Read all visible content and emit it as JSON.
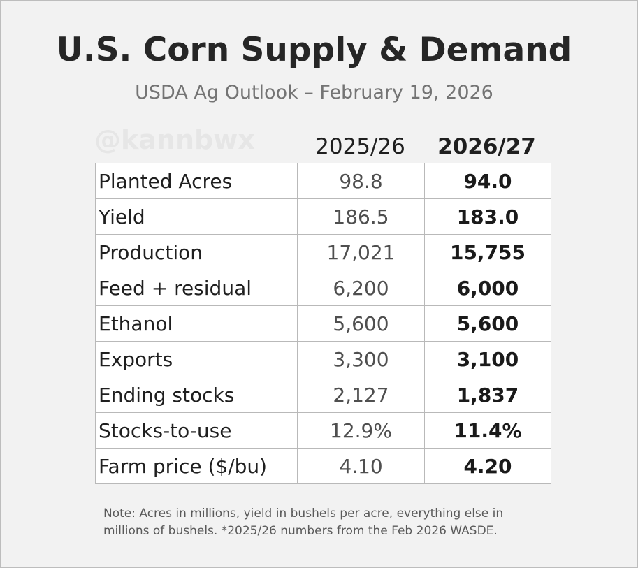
{
  "header": {
    "title": "U.S. Corn Supply & Demand",
    "subtitle": "USDA Ag Outlook – February 19, 2026",
    "watermark": "@kannbwx"
  },
  "table": {
    "columns": [
      "2025/26",
      "2026/27"
    ],
    "rows": [
      {
        "label": "Planted Acres",
        "prev": "98.8",
        "curr": "94.0"
      },
      {
        "label": "Yield",
        "prev": "186.5",
        "curr": "183.0"
      },
      {
        "label": "Production",
        "prev": "17,021",
        "curr": "15,755"
      },
      {
        "label": "Feed + residual",
        "prev": "6,200",
        "curr": "6,000"
      },
      {
        "label": "Ethanol",
        "prev": "5,600",
        "curr": "5,600"
      },
      {
        "label": "Exports",
        "prev": "3,300",
        "curr": "3,100"
      },
      {
        "label": "Ending stocks",
        "prev": "2,127",
        "curr": "1,837"
      },
      {
        "label": "Stocks-to-use",
        "prev": "12.9%",
        "curr": "11.4%"
      },
      {
        "label": "Farm price ($/bu)",
        "prev": "4.10",
        "curr": "4.20"
      }
    ]
  },
  "footer": {
    "note_line1": "Note: Acres in millions, yield in bushels per acre, everything else in",
    "note_line2": "millions of bushels. *2025/26 numbers from the Feb 2026 WASDE."
  }
}
